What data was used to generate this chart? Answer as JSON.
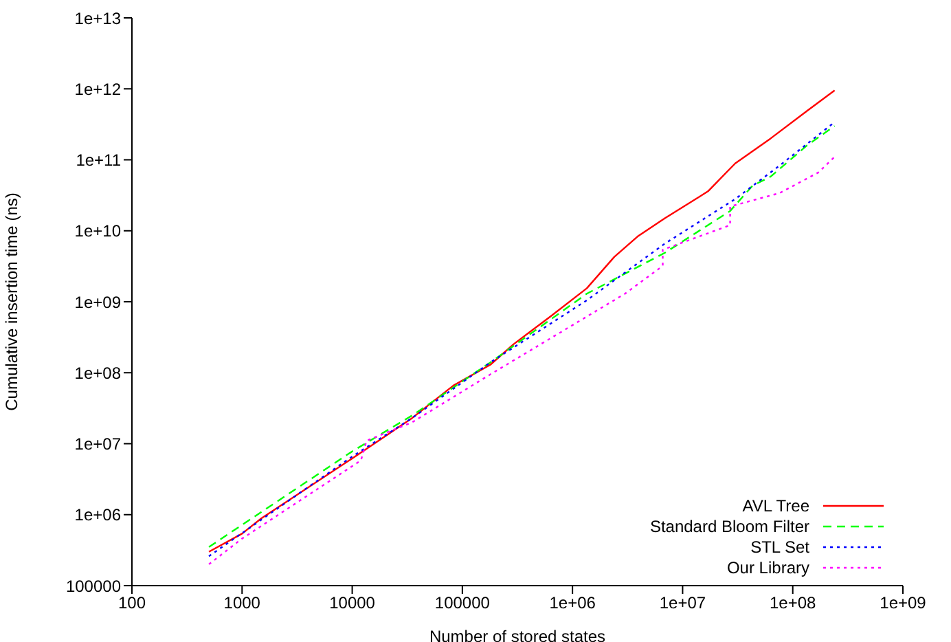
{
  "chart_data": {
    "type": "line",
    "xlabel": "Number of stored states",
    "ylabel": "Cumulative insertion time (ns)",
    "log": "xy",
    "grid": false,
    "legend": "bottom right",
    "marker": "none",
    "xlim": [
      100,
      1000000000
    ],
    "xticks": [
      100,
      1000,
      10000,
      100000,
      {
        "value": 1000000,
        "label": "1e+06"
      },
      {
        "value": 10000000,
        "label": "1e+07"
      },
      {
        "value": 100000000,
        "label": "1e+08"
      },
      {
        "value": 1000000000,
        "label": "1e+09"
      }
    ],
    "ylim": [
      100000,
      10000000000000
    ],
    "yticks": [
      100000,
      {
        "value": 1000000,
        "label": "1e+06"
      },
      {
        "value": 10000000,
        "label": "1e+07"
      },
      {
        "value": 100000000,
        "label": "1e+08"
      },
      {
        "value": 1000000000,
        "label": "1e+09"
      },
      {
        "value": 10000000000,
        "label": "1e+10"
      },
      {
        "value": 100000000000,
        "label": "1e+11"
      },
      {
        "value": 1000000000000,
        "label": "1e+12"
      },
      {
        "value": 10000000000000,
        "label": "1e+13"
      }
    ],
    "series": [
      {
        "name": "AVL Tree",
        "color": "#ff0000",
        "line_style": "solid",
        "x": [
          500,
          1000,
          1500,
          10000,
          35000,
          83000,
          180000,
          290000,
          630000,
          1350000,
          2400000,
          3900000,
          6900000,
          17000000,
          30000000,
          63000000,
          135000000,
          240000000
        ],
        "values": [
          300000,
          540000,
          890000,
          6200000,
          23000000,
          66000000,
          130000000,
          250000000,
          620000000,
          1550000000,
          4300000000,
          8300000000,
          15000000000,
          36000000000,
          89000000000,
          200000000000,
          490000000000,
          950000000000
        ]
      },
      {
        "name": "Standard Bloom Filter",
        "color": "#00ff00",
        "line_style": "dashed",
        "x": [
          500,
          10000,
          35000,
          180000,
          1350000,
          6900000,
          27000000,
          43000000,
          63000000,
          135000000,
          240000000
        ],
        "values": [
          350000,
          7800000,
          25000000,
          140000000,
          1300000000,
          4900000000,
          19000000000,
          43000000000,
          58000000000,
          160000000000,
          300000000000
        ]
      },
      {
        "name": "STL Set",
        "color": "#0000ff",
        "line_style": "dotted",
        "x": [
          500,
          10000,
          35000,
          180000,
          1350000,
          6900000,
          30000000,
          76000000,
          240000000
        ],
        "values": [
          260000,
          6600000,
          23000000,
          140000000,
          1050000000,
          6600000000,
          28000000000,
          83000000000,
          340000000000
        ]
      },
      {
        "name": "Our Library",
        "color": "#ff00ff",
        "line_style": "dotted",
        "x": [
          500,
          1000,
          12000,
          13500,
          35000,
          180000,
          3000000,
          6600000,
          6600000,
          27000000,
          27000000,
          76000000,
          170000000,
          240000000
        ],
        "values": [
          200000,
          460000,
          5800000,
          11000000,
          20000000,
          95000000,
          1300000000,
          3200000000,
          5400000000,
          12000000000,
          22000000000,
          34000000000,
          66000000000,
          110000000000
        ]
      }
    ]
  }
}
